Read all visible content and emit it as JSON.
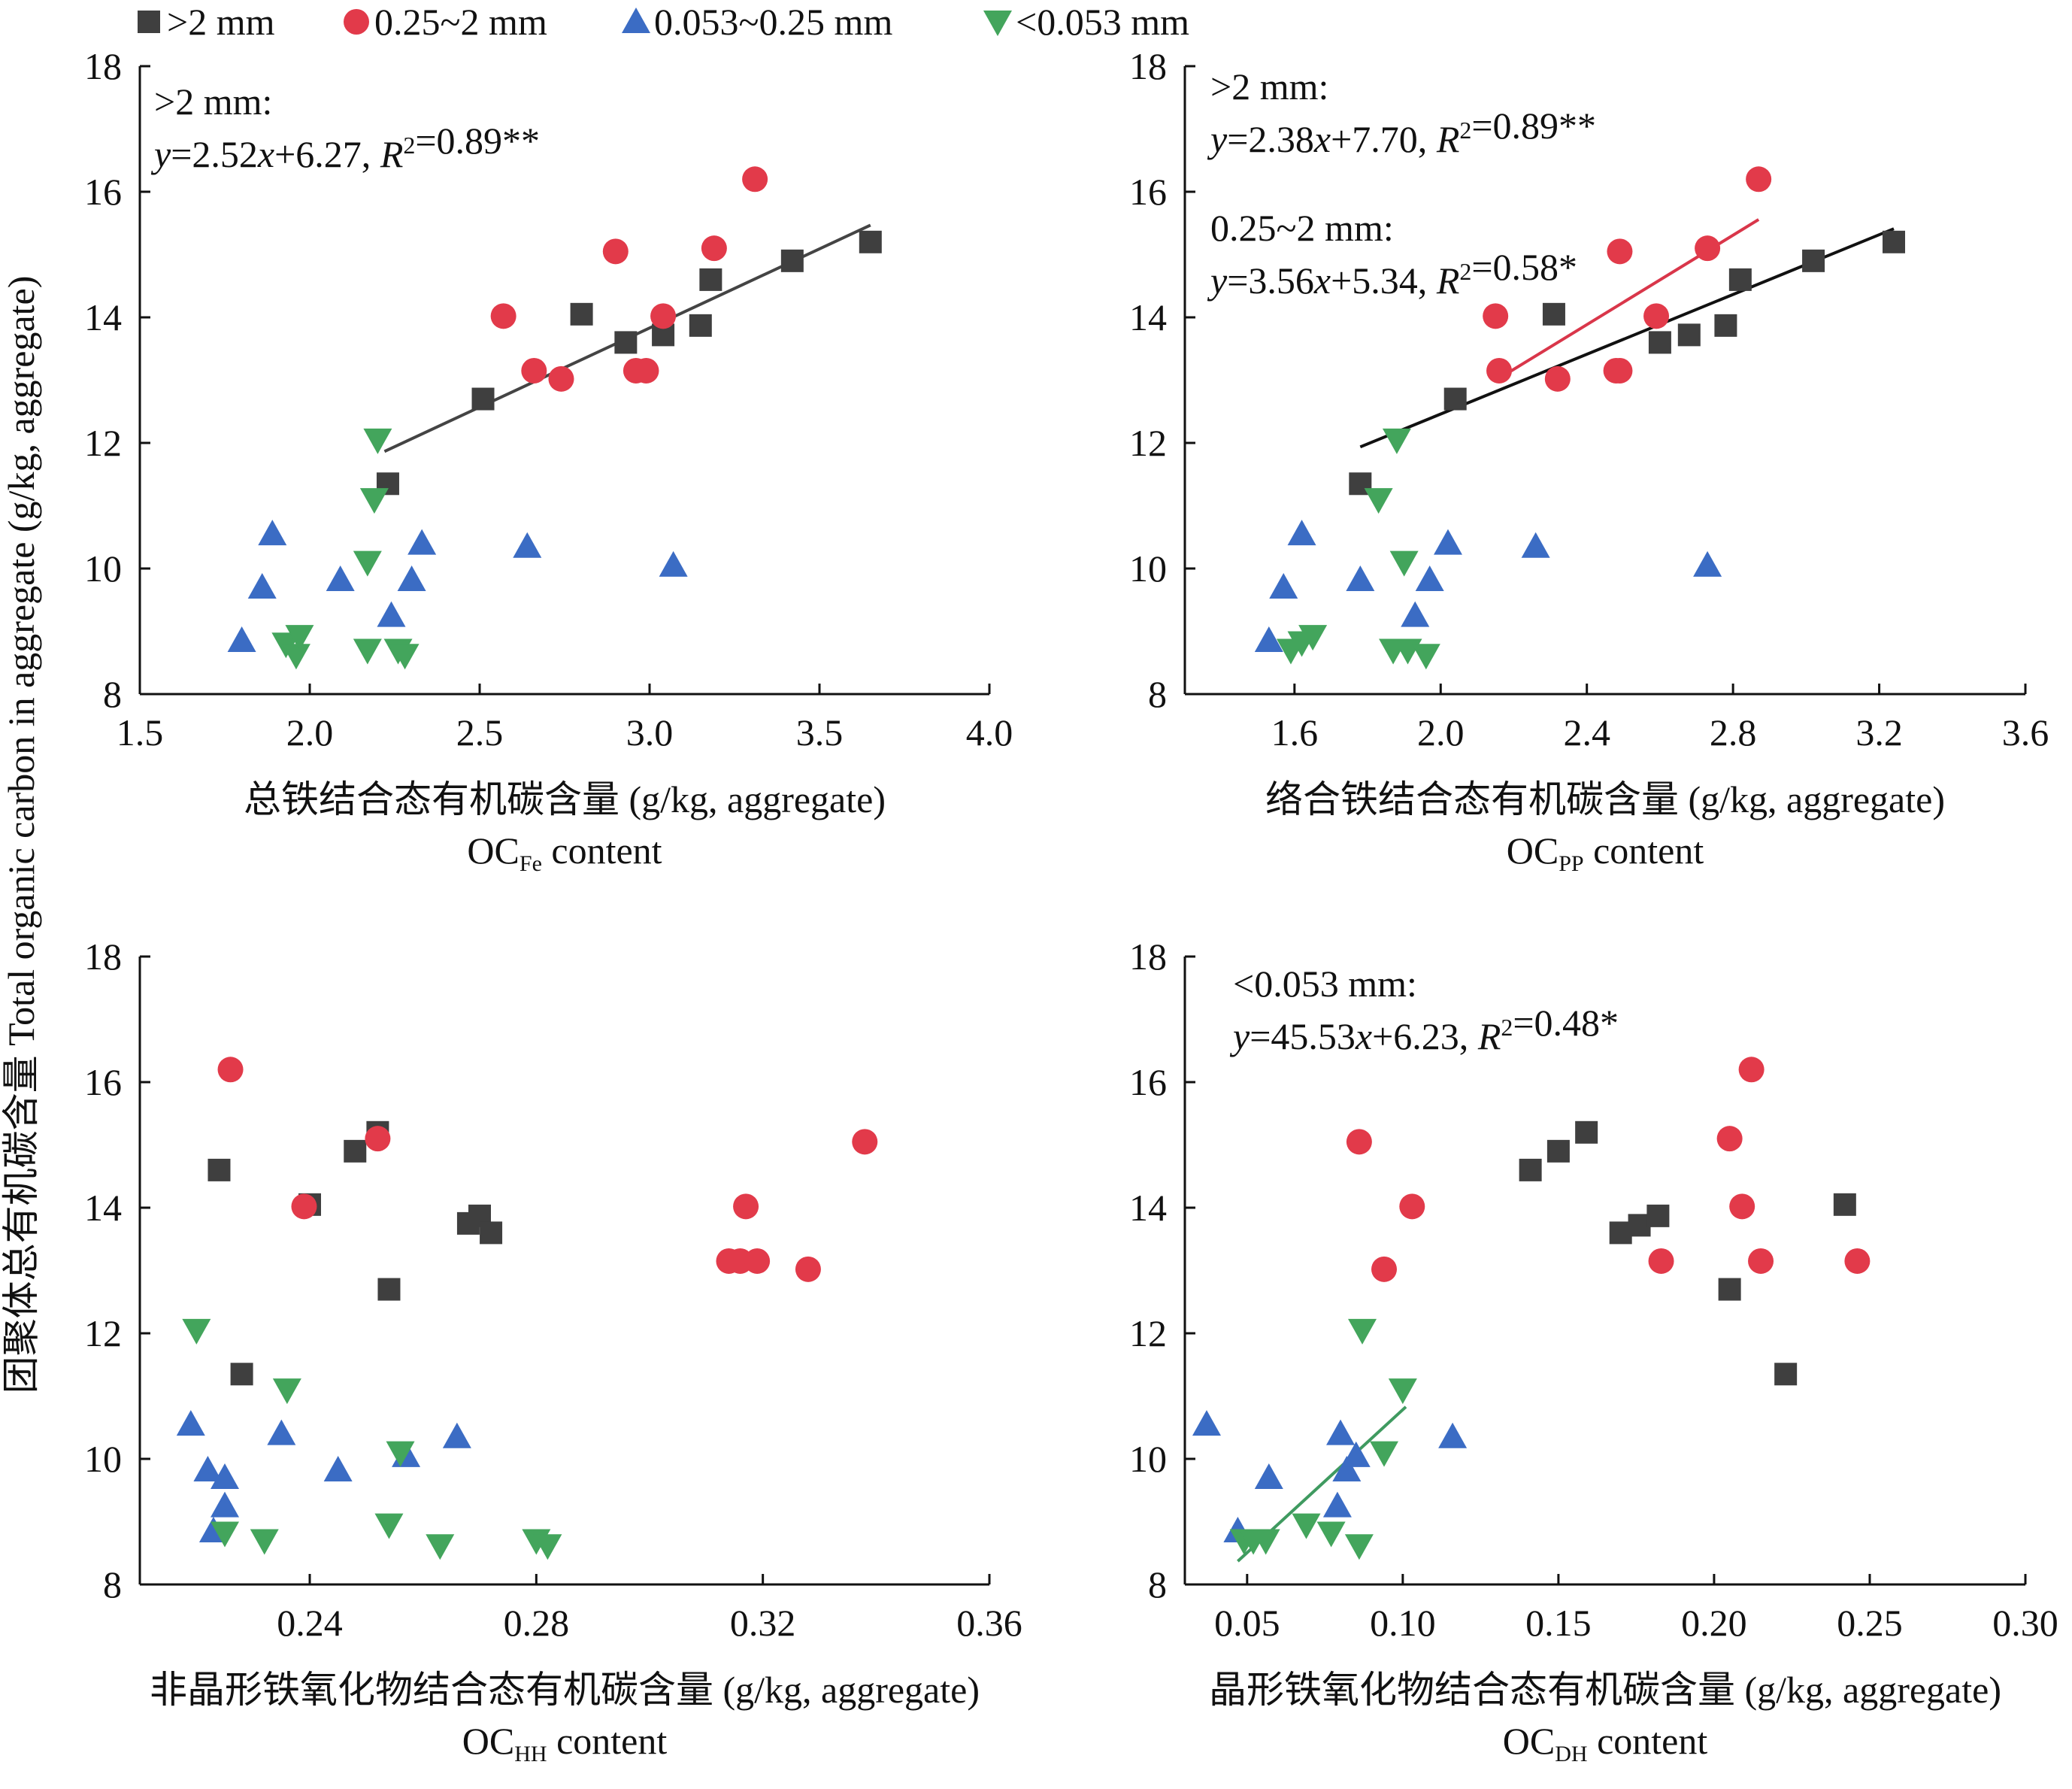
{
  "legend": [
    {
      "label": ">2 mm",
      "shape": "square",
      "color": "#3f3f3f"
    },
    {
      "label": "0.25~2 mm",
      "shape": "circle",
      "color": "#e23a4a"
    },
    {
      "label": "0.053~0.25 mm",
      "shape": "triangle-up",
      "color": "#3b6cc4"
    },
    {
      "label": "<0.053 mm",
      "shape": "triangle-down",
      "color": "#43a55c"
    }
  ],
  "y_axis_label": "团聚体总有机碳含量 Total organic carbon in aggregate (g/kg, aggregate)",
  "chart_data": [
    {
      "type": "scatter",
      "xlabel_cn": "总铁结合态有机碳含量 (g/kg, aggregate)",
      "xlabel_en_main": "OC",
      "xlabel_en_sub": "Fe",
      "xlabel_en_tail": " content",
      "xlim": [
        1.5,
        4.0
      ],
      "ylim": [
        8,
        18
      ],
      "xticks": [
        "1.5",
        "2.0",
        "2.5",
        "3.0",
        "3.5",
        "4.0"
      ],
      "yticks": [
        "8",
        "10",
        "12",
        "14",
        "16",
        "18"
      ],
      "annotations": [
        {
          "title": ">2 mm:",
          "equation": "y=2.52x+6.27, R2=0.89**"
        }
      ],
      "fit_lines": [
        {
          "series": ">2 mm",
          "x": [
            2.22,
            3.65
          ],
          "color": "#444444"
        }
      ],
      "series": [
        {
          "name": ">2 mm",
          "points": [
            [
              2.23,
              11.35
            ],
            [
              2.51,
              12.7
            ],
            [
              2.8,
              14.05
            ],
            [
              2.93,
              13.6
            ],
            [
              3.04,
              13.72
            ],
            [
              3.15,
              13.87
            ],
            [
              3.18,
              14.6
            ],
            [
              3.42,
              14.9
            ],
            [
              3.65,
              15.2
            ]
          ]
        },
        {
          "name": "0.25~2 mm",
          "points": [
            [
              2.57,
              14.02
            ],
            [
              2.66,
              13.15
            ],
            [
              2.74,
              13.02
            ],
            [
              2.9,
              15.05
            ],
            [
              2.96,
              13.15
            ],
            [
              2.99,
              13.15
            ],
            [
              3.04,
              14.02
            ],
            [
              3.19,
              15.1
            ],
            [
              3.31,
              16.2
            ]
          ]
        },
        {
          "name": "0.053~0.25 mm",
          "points": [
            [
              1.8,
              8.85
            ],
            [
              1.86,
              9.7
            ],
            [
              1.89,
              10.55
            ],
            [
              2.09,
              9.82
            ],
            [
              2.24,
              9.25
            ],
            [
              2.3,
              9.82
            ],
            [
              2.33,
              10.4
            ],
            [
              2.64,
              10.35
            ],
            [
              3.07,
              10.05
            ]
          ]
        },
        {
          "name": "<0.053 mm",
          "points": [
            [
              1.93,
              8.8
            ],
            [
              1.96,
              8.62
            ],
            [
              1.97,
              8.92
            ],
            [
              2.17,
              8.7
            ],
            [
              2.17,
              10.1
            ],
            [
              2.19,
              11.1
            ],
            [
              2.2,
              12.05
            ],
            [
              2.26,
              8.7
            ],
            [
              2.28,
              8.62
            ]
          ]
        }
      ]
    },
    {
      "type": "scatter",
      "xlabel_cn": "络合铁结合态有机碳含量 (g/kg, aggregate)",
      "xlabel_en_main": "OC",
      "xlabel_en_sub": "PP",
      "xlabel_en_tail": " content",
      "xlim": [
        1.3,
        3.6
      ],
      "ylim": [
        8,
        18
      ],
      "xticks": [
        "1.6",
        "2.0",
        "2.4",
        "2.8",
        "3.2",
        "3.6"
      ],
      "yticks": [
        "8",
        "10",
        "12",
        "14",
        "16",
        "18"
      ],
      "annotations": [
        {
          "title": ">2 mm:",
          "equation": "y=2.38x+7.70, R2=0.89**"
        },
        {
          "title": "0.25~2 mm:",
          "equation": "y=3.56x+5.34, R2=0.58*"
        }
      ],
      "fit_lines": [
        {
          "series": ">2 mm",
          "x": [
            1.78,
            3.24
          ],
          "color": "#111111"
        },
        {
          "series": "0.25~2 mm",
          "x": [
            2.15,
            2.87
          ],
          "color": "#d9364a"
        }
      ],
      "series": [
        {
          "name": ">2 mm",
          "points": [
            [
              1.78,
              11.35
            ],
            [
              2.04,
              12.7
            ],
            [
              2.31,
              14.05
            ],
            [
              2.6,
              13.6
            ],
            [
              2.68,
              13.72
            ],
            [
              2.78,
              13.87
            ],
            [
              2.82,
              14.6
            ],
            [
              3.02,
              14.9
            ],
            [
              3.24,
              15.2
            ]
          ]
        },
        {
          "name": "0.25~2 mm",
          "points": [
            [
              2.15,
              14.02
            ],
            [
              2.16,
              13.15
            ],
            [
              2.32,
              13.02
            ],
            [
              2.48,
              13.15
            ],
            [
              2.49,
              13.15
            ],
            [
              2.49,
              15.05
            ],
            [
              2.59,
              14.02
            ],
            [
              2.73,
              15.1
            ],
            [
              2.87,
              16.2
            ]
          ]
        },
        {
          "name": "0.053~0.25 mm",
          "points": [
            [
              1.53,
              8.85
            ],
            [
              1.57,
              9.7
            ],
            [
              1.62,
              10.55
            ],
            [
              1.78,
              9.82
            ],
            [
              1.93,
              9.25
            ],
            [
              1.97,
              9.82
            ],
            [
              2.02,
              10.4
            ],
            [
              2.26,
              10.35
            ],
            [
              2.73,
              10.05
            ]
          ]
        },
        {
          "name": "<0.053 mm",
          "points": [
            [
              1.59,
              8.7
            ],
            [
              1.62,
              8.82
            ],
            [
              1.65,
              8.92
            ],
            [
              1.83,
              11.1
            ],
            [
              1.87,
              8.7
            ],
            [
              1.88,
              12.05
            ],
            [
              1.9,
              10.1
            ],
            [
              1.91,
              8.7
            ],
            [
              1.96,
              8.62
            ]
          ]
        }
      ]
    },
    {
      "type": "scatter",
      "xlabel_cn": "非晶形铁氧化物结合态有机碳含量 (g/kg, aggregate)",
      "xlabel_en_main": "OC",
      "xlabel_en_sub": "HH",
      "xlabel_en_tail": " content",
      "xlim": [
        0.21,
        0.36
      ],
      "ylim": [
        8,
        18
      ],
      "xticks": [
        "0.24",
        "0.28",
        "0.32",
        "0.36"
      ],
      "yticks": [
        "8",
        "10",
        "12",
        "14",
        "16",
        "18"
      ],
      "annotations": [],
      "fit_lines": [],
      "series": [
        {
          "name": ">2 mm",
          "points": [
            [
              0.224,
              14.6
            ],
            [
              0.228,
              11.35
            ],
            [
              0.24,
              14.05
            ],
            [
              0.248,
              14.9
            ],
            [
              0.252,
              15.2
            ],
            [
              0.254,
              12.7
            ],
            [
              0.268,
              13.75
            ],
            [
              0.27,
              13.87
            ],
            [
              0.272,
              13.6
            ]
          ]
        },
        {
          "name": "0.25~2 mm",
          "points": [
            [
              0.226,
              16.2
            ],
            [
              0.239,
              14.02
            ],
            [
              0.252,
              15.1
            ],
            [
              0.314,
              13.15
            ],
            [
              0.316,
              13.15
            ],
            [
              0.317,
              14.02
            ],
            [
              0.319,
              13.15
            ],
            [
              0.328,
              13.02
            ],
            [
              0.338,
              15.05
            ]
          ]
        },
        {
          "name": "0.053~0.25 mm",
          "points": [
            [
              0.219,
              10.55
            ],
            [
              0.222,
              9.82
            ],
            [
              0.223,
              8.85
            ],
            [
              0.225,
              9.7
            ],
            [
              0.225,
              9.25
            ],
            [
              0.235,
              10.4
            ],
            [
              0.245,
              9.82
            ],
            [
              0.257,
              10.05
            ],
            [
              0.266,
              10.35
            ]
          ]
        },
        {
          "name": "<0.053 mm",
          "points": [
            [
              0.22,
              12.05
            ],
            [
              0.225,
              8.82
            ],
            [
              0.232,
              8.7
            ],
            [
              0.236,
              11.1
            ],
            [
              0.254,
              8.95
            ],
            [
              0.256,
              10.1
            ],
            [
              0.263,
              8.62
            ],
            [
              0.28,
              8.7
            ],
            [
              0.282,
              8.62
            ]
          ]
        }
      ]
    },
    {
      "type": "scatter",
      "xlabel_cn": "晶形铁氧化物结合态有机碳含量 (g/kg, aggregate)",
      "xlabel_en_main": "OC",
      "xlabel_en_sub": "DH",
      "xlabel_en_tail": " content",
      "xlim": [
        0.03,
        0.3
      ],
      "ylim": [
        8,
        18
      ],
      "xticks": [
        "0.05",
        "0.10",
        "0.15",
        "0.20",
        "0.25",
        "0.30"
      ],
      "yticks": [
        "8",
        "10",
        "12",
        "14",
        "16",
        "18"
      ],
      "annotations": [
        {
          "title": "<0.053 mm:",
          "equation": "y=45.53x+6.23, R2=0.48*"
        }
      ],
      "fit_lines": [
        {
          "series": "<0.053 mm",
          "x": [
            0.047,
            0.101
          ],
          "color": "#3f9a60"
        }
      ],
      "series": [
        {
          "name": ">2 mm",
          "points": [
            [
              0.141,
              14.6
            ],
            [
              0.15,
              14.9
            ],
            [
              0.159,
              15.2
            ],
            [
              0.17,
              13.6
            ],
            [
              0.176,
              13.72
            ],
            [
              0.182,
              13.87
            ],
            [
              0.205,
              12.7
            ],
            [
              0.223,
              11.35
            ],
            [
              0.242,
              14.05
            ]
          ]
        },
        {
          "name": "0.25~2 mm",
          "points": [
            [
              0.086,
              15.05
            ],
            [
              0.094,
              13.02
            ],
            [
              0.103,
              14.02
            ],
            [
              0.183,
              13.15
            ],
            [
              0.205,
              15.1
            ],
            [
              0.209,
              14.02
            ],
            [
              0.212,
              16.2
            ],
            [
              0.215,
              13.15
            ],
            [
              0.246,
              13.15
            ]
          ]
        },
        {
          "name": "0.053~0.25 mm",
          "points": [
            [
              0.037,
              10.55
            ],
            [
              0.047,
              8.85
            ],
            [
              0.057,
              9.7
            ],
            [
              0.079,
              9.25
            ],
            [
              0.08,
              10.4
            ],
            [
              0.082,
              9.82
            ],
            [
              0.085,
              10.05
            ],
            [
              0.116,
              10.35
            ]
          ]
        },
        {
          "name": "<0.053 mm",
          "points": [
            [
              0.049,
              8.7
            ],
            [
              0.052,
              8.7
            ],
            [
              0.056,
              8.7
            ],
            [
              0.069,
              8.95
            ],
            [
              0.077,
              8.82
            ],
            [
              0.086,
              8.62
            ],
            [
              0.087,
              12.05
            ],
            [
              0.094,
              10.1
            ],
            [
              0.1,
              11.1
            ]
          ]
        }
      ]
    }
  ]
}
